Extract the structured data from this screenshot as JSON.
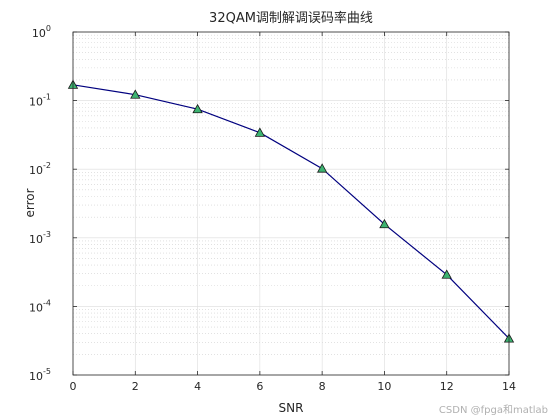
{
  "chart_data": {
    "type": "line",
    "title": "32QAM调制解调误码率曲线",
    "xlabel": "SNR",
    "ylabel": "error",
    "x": [
      0,
      2,
      4,
      6,
      8,
      10,
      12,
      14
    ],
    "series": [
      {
        "values": [
          0.17,
          0.122,
          0.075,
          0.034,
          0.0102,
          0.00158,
          0.00029,
          3.4e-05
        ],
        "line_color": "#00007f",
        "marker": "triangle",
        "marker_face": "#3cb371",
        "marker_edge": "#1a1a1a"
      }
    ],
    "xlim": [
      0,
      14
    ],
    "ylim": [
      1e-05,
      1
    ],
    "y_scale": "log",
    "x_ticks": [
      "0",
      "2",
      "4",
      "6",
      "8",
      "10",
      "12",
      "14"
    ],
    "y_ticks": [
      {
        "base": "10",
        "exp": "-5"
      },
      {
        "base": "10",
        "exp": "-4"
      },
      {
        "base": "10",
        "exp": "-3"
      },
      {
        "base": "10",
        "exp": "-2"
      },
      {
        "base": "10",
        "exp": "-1"
      },
      {
        "base": "10",
        "exp": "0"
      }
    ],
    "grid": true,
    "minor_grid": true
  },
  "watermark": "CSDN @fpga和matlab"
}
